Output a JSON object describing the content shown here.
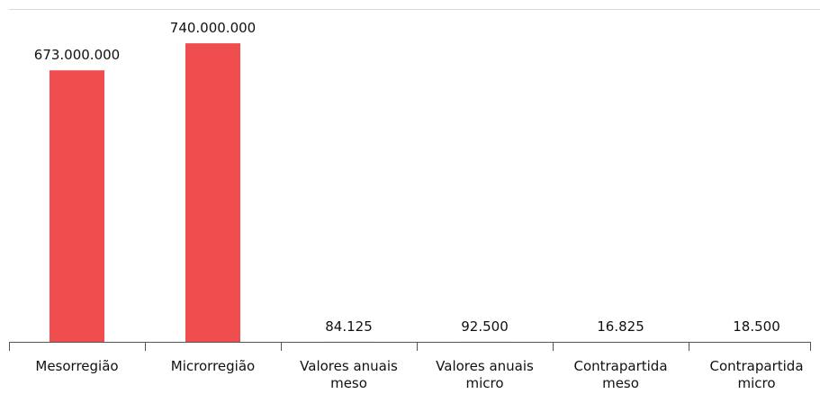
{
  "chart_data": {
    "type": "bar",
    "categories": [
      "Mesorregião",
      "Microrregião",
      "Valores anuais meso",
      "Valores anuais micro",
      "Contrapartida meso",
      "Contrapartida micro"
    ],
    "values": [
      673000000,
      740000000,
      84125,
      92500,
      16825,
      18500
    ],
    "value_labels": [
      "673.000.000",
      "740.000.000",
      "84.125",
      "92.500",
      "16.825",
      "18.500"
    ],
    "color": "#f04e4e",
    "ylim": [
      0,
      825000000
    ]
  }
}
